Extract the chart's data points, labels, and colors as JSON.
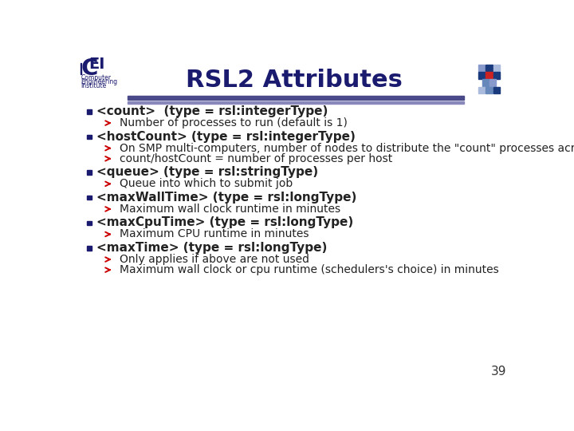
{
  "title": "RSL2 Attributes",
  "bg_color": "#ffffff",
  "title_color": "#1a1a6e",
  "header_line1_color": "#4a4a8a",
  "header_line2_color": "#8888bb",
  "bullet_color": "#1a1a6e",
  "arrow_color": "#cc0000",
  "text_color": "#222222",
  "page_number": "39",
  "diamonds": [
    [
      0,
      0,
      "#8899cc"
    ],
    [
      12,
      0,
      "#1a3a7e"
    ],
    [
      24,
      0,
      "#aabbdd"
    ],
    [
      0,
      -12,
      "#1a3a7e"
    ],
    [
      12,
      -12,
      "#cc2222"
    ],
    [
      24,
      -12,
      "#1a3a7e"
    ],
    [
      6,
      -24,
      "#6688bb"
    ],
    [
      18,
      -24,
      "#8899cc"
    ],
    [
      0,
      -36,
      "#aabbdd"
    ],
    [
      12,
      -36,
      "#6688bb"
    ],
    [
      24,
      -36,
      "#1a3a7e"
    ]
  ],
  "bullets": [
    {
      "main": "<count>  (type = rsl:integerType)",
      "subs": [
        "Number of processes to run (default is 1)"
      ]
    },
    {
      "main": "<hostCount> (type = rsl:integerType)",
      "subs": [
        "On SMP multi-computers, number of nodes to distribute the \"count\" processes across",
        "count/hostCount = number of processes per host"
      ]
    },
    {
      "main": "<queue> (type = rsl:stringType)",
      "subs": [
        "Queue into which to submit job"
      ]
    },
    {
      "main": "<maxWallTime> (type = rsl:longType)",
      "subs": [
        "Maximum wall clock runtime in minutes"
      ]
    },
    {
      "main": "<maxCpuTime> (type = rsl:longType)",
      "subs": [
        "Maximum CPU runtime in minutes"
      ]
    },
    {
      "main": "<maxTime> (type = rsl:longType)",
      "subs": [
        "Only applies if above are not used",
        "Maximum wall clock or cpu runtime (schedulers's choice) in minutes"
      ]
    }
  ]
}
